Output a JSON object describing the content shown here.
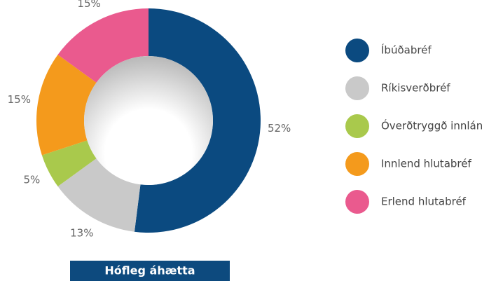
{
  "chart_data": {
    "type": "pie",
    "categories": [
      "Íbúðabréf",
      "Ríkisverðbréf",
      "Óverðtryggð innlán",
      "Innlend hlutabréf",
      "Erlend hlutabréf"
    ],
    "values": [
      52,
      13,
      5,
      15,
      15
    ],
    "value_labels": [
      "52%",
      "13%",
      "5%",
      "15%",
      "15%"
    ],
    "colors": [
      "#0b4a80",
      "#c9c9c9",
      "#a9c94c",
      "#f49a1c",
      "#ea5a8e"
    ],
    "caption": "Hófleg áhætta"
  }
}
